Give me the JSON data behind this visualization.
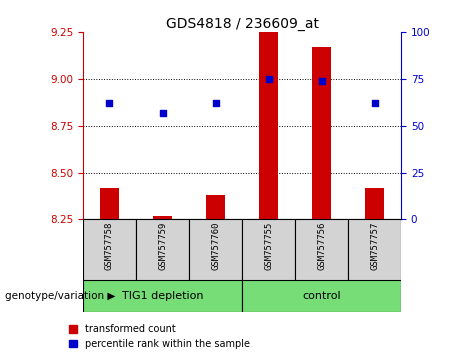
{
  "title": "GDS4818 / 236609_at",
  "samples": [
    "GSM757758",
    "GSM757759",
    "GSM757760",
    "GSM757755",
    "GSM757756",
    "GSM757757"
  ],
  "red_values": [
    8.42,
    8.27,
    8.38,
    9.26,
    9.17,
    8.42
  ],
  "blue_values": [
    8.87,
    8.82,
    8.87,
    9.0,
    8.99,
    8.87
  ],
  "ylim_left": [
    8.25,
    9.25
  ],
  "ylim_right": [
    0,
    100
  ],
  "yticks_left": [
    8.25,
    8.5,
    8.75,
    9.0,
    9.25
  ],
  "yticks_right": [
    0,
    25,
    50,
    75,
    100
  ],
  "red_color": "#cc0000",
  "blue_color": "#0000cc",
  "green_color": "#77dd77",
  "bar_width": 0.35,
  "group_label": "genotype/variation",
  "group1_label": "TIG1 depletion",
  "group2_label": "control",
  "legend_items": [
    "transformed count",
    "percentile rank within the sample"
  ],
  "baseline": 8.25,
  "hgrid_lines": [
    9.0,
    8.75,
    8.5
  ],
  "group_split": 3,
  "n_samples": 6,
  "title_fontsize": 10,
  "tick_fontsize": 7.5,
  "sample_fontsize": 6.5,
  "group_fontsize": 8,
  "legend_fontsize": 7,
  "label_fontsize": 7.5
}
